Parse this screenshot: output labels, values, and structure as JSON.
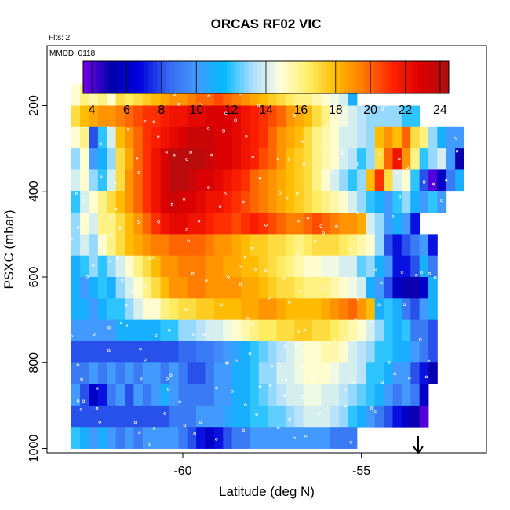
{
  "chart_data": {
    "type": "heatmap",
    "title": "ORCAS RF02 VIC",
    "flights_note": "Flts: 2",
    "date_note": "MMDD: 0118",
    "xlabel": "Latitude (deg N)",
    "ylabel": "PSXC (mbar)",
    "xlim": [
      -63.8,
      -51.5
    ],
    "ylim": [
      1010,
      60
    ],
    "y_reversed": true,
    "grid": false,
    "x_ticks": [
      -60,
      -55
    ],
    "y_ticks": [
      200,
      400,
      600,
      800,
      1000
    ],
    "colorbar": {
      "placement": "top-inside",
      "range": [
        3.5,
        24.5
      ],
      "ticks": [
        4,
        6,
        8,
        10,
        12,
        14,
        16,
        18,
        20,
        22,
        24
      ],
      "colors": [
        "#7700ee",
        "#0000aa",
        "#0000dd",
        "#3366ee",
        "#4499ff",
        "#00bbff",
        "#aaddff",
        "#ffffdd",
        "#ffee66",
        "#ffbb00",
        "#ff7700",
        "#ff2200",
        "#dd0000",
        "#aa1111"
      ]
    },
    "lat_bins": [
      -63.0,
      -62.75,
      -62.5,
      -62.25,
      -62.0,
      -61.75,
      -61.5,
      -61.25,
      -61.0,
      -60.75,
      -60.5,
      -60.25,
      -60.0,
      -59.75,
      -59.5,
      -59.25,
      -59.0,
      -58.75,
      -58.5,
      -58.25,
      -58.0,
      -57.75,
      -57.5,
      -57.25,
      -57.0,
      -56.75,
      -56.5,
      -56.25,
      -56.0,
      -55.75,
      -55.5,
      -55.25,
      -55.0,
      -54.75,
      -54.5,
      -54.25,
      -54.0,
      -53.75,
      -53.5,
      -53.25,
      -53.0,
      -52.75,
      -52.5,
      -52.25,
      -52.0
    ],
    "pressure_bins": [
      175,
      225,
      275,
      325,
      375,
      425,
      475,
      525,
      575,
      625,
      675,
      725,
      775,
      825,
      875,
      925,
      975
    ],
    "values": [
      [
        15,
        16,
        15.5,
        16,
        15,
        17,
        16.5,
        17,
        17.5,
        18,
        18.5,
        19,
        19,
        19.5,
        20,
        20,
        20.5,
        20,
        19.5,
        19,
        18.5,
        18,
        17.5,
        17,
        16.5,
        16,
        16,
        15.5,
        15,
        14.5,
        14,
        11,
        null,
        null,
        null,
        null,
        null,
        null,
        null,
        null,
        null,
        null,
        null,
        null,
        null
      ],
      [
        17,
        18,
        18.5,
        19,
        19,
        19.5,
        20,
        20.5,
        21,
        21,
        21.5,
        22,
        22,
        22.5,
        22.5,
        23,
        23,
        23,
        22.5,
        22,
        21.5,
        21,
        20.5,
        20,
        19,
        18.5,
        18,
        17,
        16,
        15,
        14.5,
        14,
        13.5,
        13,
        13,
        13,
        13,
        12,
        12,
        null,
        null,
        null,
        null,
        null,
        null
      ],
      [
        15,
        16,
        8,
        12,
        14,
        18,
        19,
        20,
        21,
        21.5,
        22,
        22.5,
        23,
        23.5,
        23.5,
        23.5,
        23,
        23,
        22.5,
        22,
        21.5,
        21,
        20,
        19,
        18.5,
        18,
        17,
        16,
        15.5,
        15,
        14,
        14,
        13.5,
        13,
        18,
        19,
        18,
        20,
        17,
        16,
        13,
        11,
        10,
        10,
        null
      ],
      [
        13,
        15,
        10,
        11,
        13,
        17,
        18.5,
        20,
        21,
        22,
        23,
        24,
        24,
        24,
        24,
        23.5,
        23,
        23,
        22.5,
        22,
        21.5,
        20.5,
        20,
        19,
        18,
        17.5,
        17,
        16,
        15.5,
        15,
        14,
        13.5,
        12,
        13,
        17,
        20,
        22,
        19,
        16,
        12,
        13,
        14,
        10,
        5,
        null
      ],
      [
        14,
        15,
        13,
        12,
        14,
        17,
        19,
        20,
        21,
        22,
        23,
        24,
        24,
        23.5,
        23,
        23,
        22.5,
        22,
        21.5,
        21,
        20,
        19.5,
        19,
        18.5,
        18,
        17.5,
        17,
        16,
        15,
        14,
        13,
        12,
        13,
        18,
        21,
        17,
        14,
        15,
        12,
        8,
        4,
        6,
        9,
        11,
        null
      ],
      [
        12,
        14,
        15,
        16,
        17,
        18,
        19,
        20,
        21,
        22,
        23,
        23.5,
        23,
        23,
        22.5,
        22,
        22,
        21.5,
        21,
        20.5,
        20,
        19.5,
        19,
        18.5,
        18,
        17.5,
        17,
        16.5,
        16,
        15.5,
        15,
        14,
        13,
        12,
        11,
        10,
        12,
        13,
        11,
        10,
        12,
        10,
        null,
        null,
        null
      ],
      [
        13,
        15,
        14,
        16,
        16,
        17,
        18,
        19,
        20,
        21,
        22,
        22.5,
        22.5,
        22,
        22,
        21.5,
        21,
        21,
        20.5,
        21,
        21.5,
        21,
        20.5,
        20,
        19.5,
        19.5,
        20,
        20.5,
        20,
        19.5,
        19,
        19,
        18.5,
        14,
        13,
        10,
        11,
        10,
        7,
        null,
        null,
        null,
        null,
        null,
        null
      ],
      [
        13,
        14,
        13,
        15,
        16,
        17,
        18,
        18.5,
        19,
        19.5,
        19.5,
        20,
        20,
        20,
        20,
        19.5,
        19,
        19,
        18.5,
        18,
        17.5,
        17.5,
        17,
        17,
        16.5,
        16,
        16.5,
        17,
        17,
        17,
        16.5,
        16,
        15.5,
        15,
        13,
        8,
        7,
        8,
        9,
        10,
        7,
        null,
        null,
        null,
        null
      ],
      [
        11,
        12,
        13,
        12,
        13,
        14,
        15,
        16,
        17,
        18,
        19,
        19,
        19.5,
        19.5,
        19.5,
        19,
        19,
        18.5,
        18.5,
        18,
        18,
        17.5,
        17,
        16.5,
        16,
        15.5,
        15,
        15,
        14.5,
        14.5,
        14,
        14,
        12.5,
        13,
        11,
        10,
        7,
        7,
        8,
        11,
        9,
        null,
        null,
        null,
        null
      ],
      [
        11,
        10,
        11,
        12,
        11,
        13,
        14,
        15,
        16,
        17,
        18,
        19,
        19,
        19.5,
        19.5,
        19,
        19,
        19,
        19,
        18.5,
        18.5,
        18,
        17.5,
        17,
        17,
        16.5,
        16,
        16,
        16,
        15.5,
        15,
        14.5,
        14,
        11,
        10,
        8,
        6,
        5,
        5,
        6,
        11,
        null,
        null,
        null,
        null
      ],
      [
        11,
        11,
        10,
        11,
        12,
        12,
        13,
        14,
        15,
        15,
        16,
        16.5,
        17,
        17,
        17.5,
        17.5,
        18,
        18,
        18,
        18.5,
        18.5,
        19,
        19,
        18.5,
        18,
        18,
        18,
        18,
        18.5,
        19,
        19.5,
        20,
        19,
        18,
        11,
        12,
        11,
        9,
        8,
        10,
        11,
        null,
        null,
        null,
        null
      ],
      [
        10,
        10,
        10,
        10,
        10,
        11,
        11,
        11,
        11,
        11,
        12,
        12,
        13,
        13,
        13.5,
        14,
        14,
        14.5,
        15,
        15.5,
        16,
        16.5,
        16.5,
        17,
        17,
        17.5,
        17.5,
        17,
        17,
        16.5,
        16,
        15.5,
        15,
        14,
        13,
        12,
        11,
        12,
        9,
        9,
        8,
        null,
        null,
        null,
        null
      ],
      [
        8,
        8,
        8,
        8,
        8,
        8,
        8,
        8,
        8,
        8,
        8,
        8,
        8.5,
        8.5,
        9,
        9,
        9.5,
        10,
        10.5,
        11,
        12,
        12.5,
        13,
        13.5,
        14,
        14.5,
        15,
        15,
        15.5,
        15.5,
        15,
        14,
        13.5,
        13,
        12,
        12,
        11,
        11,
        10,
        9,
        8,
        null,
        null,
        null,
        null
      ],
      [
        9,
        9,
        10,
        9,
        10,
        9,
        10,
        9,
        10,
        10,
        9,
        10,
        9,
        8,
        8,
        9,
        10,
        10,
        11,
        11,
        12,
        13,
        13,
        14,
        14,
        14.5,
        15,
        15,
        15,
        14.5,
        14,
        14,
        13.5,
        12,
        12,
        11,
        10,
        10,
        8,
        7,
        5,
        null,
        null,
        null,
        null
      ],
      [
        10,
        8,
        6,
        7,
        9,
        10,
        8,
        10,
        9,
        10,
        11,
        10,
        9,
        9,
        9,
        9,
        10,
        10,
        11,
        11,
        12,
        12.5,
        13,
        13.5,
        14,
        14,
        14.5,
        14.5,
        14,
        14,
        13.5,
        13,
        12.5,
        12,
        11,
        10,
        9,
        10,
        9,
        6,
        null,
        null,
        null,
        null,
        null
      ],
      [
        8,
        8,
        8,
        8,
        8,
        8,
        8,
        8,
        8,
        8,
        8,
        9,
        9,
        9,
        10,
        10,
        10,
        10.5,
        11,
        11,
        12,
        12,
        12.5,
        12.5,
        13,
        13.5,
        14,
        14,
        14,
        13.5,
        13,
        12,
        11,
        10,
        9,
        8,
        7,
        6,
        5,
        4,
        null,
        null,
        null,
        null,
        null
      ],
      [
        12,
        11,
        10,
        11,
        10,
        9,
        10,
        9,
        10,
        10,
        10,
        10,
        9,
        8,
        7,
        6,
        7,
        8,
        9,
        9,
        10,
        10,
        10,
        10,
        10,
        10,
        10,
        10,
        10,
        9,
        9,
        9,
        null,
        null,
        null,
        null,
        null,
        null,
        null,
        null,
        null,
        null,
        null,
        null,
        null
      ]
    ]
  }
}
